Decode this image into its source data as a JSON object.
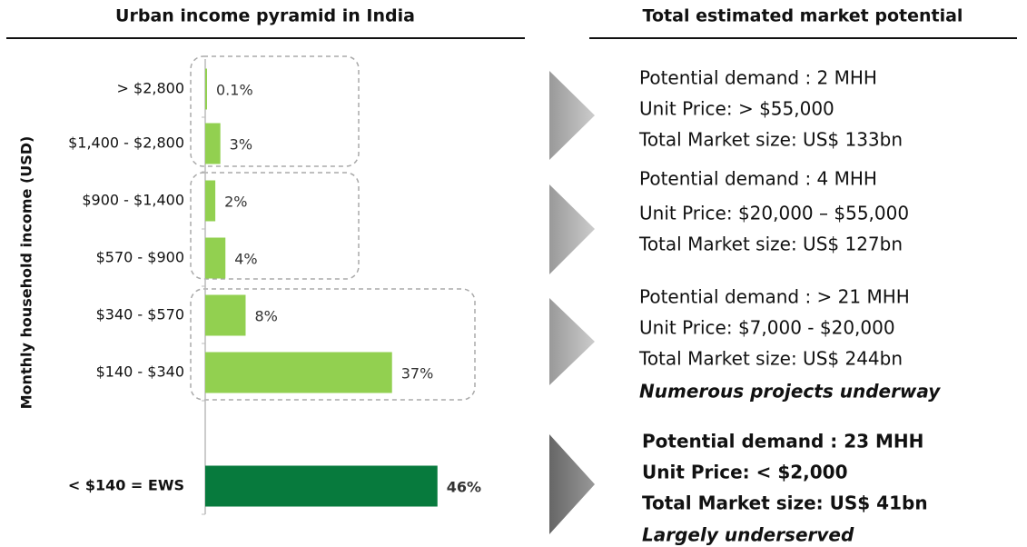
{
  "chart_data": {
    "type": "bar",
    "orientation": "horizontal",
    "title": "Urban income pyramid in India",
    "y_label": "Monthly household income (USD)",
    "categories": [
      "> $2,800",
      "$1,400 - $2,800",
      "$900 - $1,400",
      "$570 - $900",
      "$340 - $570",
      "$140 - $340",
      "< $140 = EWS"
    ],
    "values": [
      0.1,
      3,
      2,
      4,
      8,
      37,
      46
    ],
    "value_labels": [
      "0.1%",
      "3%",
      "2%",
      "4%",
      "8%",
      "37%",
      "46%"
    ],
    "colors": [
      "#92d050",
      "#92d050",
      "#92d050",
      "#92d050",
      "#92d050",
      "#92d050",
      "#077a3d"
    ]
  },
  "market": {
    "title": "Total estimated market potential",
    "blocks": [
      {
        "lines": [
          "Potential demand : 2 MHH",
          "Unit Price:  > $55,000",
          "Total Market size: US$ 133bn"
        ]
      },
      {
        "lines": [
          "Potential demand : 4 MHH",
          "Unit Price:  $20,000 – $55,000",
          "Total Market size: US$ 127bn"
        ]
      },
      {
        "lines": [
          "Potential demand : > 21 MHH",
          "Unit Price:  $7,000 - $20,000",
          "Total Market size: US$ 244bn",
          "Numerous projects underway"
        ]
      },
      {
        "lines": [
          "Potential demand : 23 MHH",
          "Unit Price:  < $2,000",
          "Total Market size: US$ 41bn",
          "Largely underserved"
        ]
      }
    ]
  }
}
